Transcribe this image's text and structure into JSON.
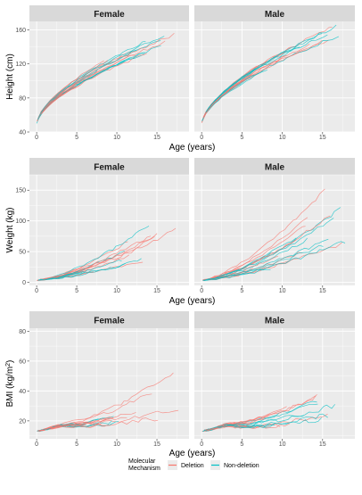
{
  "figure": {
    "legend": {
      "title_line1": "Molecular",
      "title_line2": "Mechanism",
      "entries": [
        {
          "label": "Deletion",
          "color": "#F8766D"
        },
        {
          "label": "Non-deletion",
          "color": "#00BFC4"
        }
      ],
      "position": "bottom-center"
    },
    "colors": {
      "panel_bg": "#EBEBEB",
      "strip_bg": "#D9D9D9",
      "grid": "#ffffff",
      "deletion": "#F8766D",
      "non_deletion": "#00BFC4"
    }
  },
  "chart_data": [
    {
      "type": "line",
      "facet": "Female",
      "xlabel": "Age (years)",
      "ylabel": "Height (cm)",
      "xlim": [
        -0.9,
        19
      ],
      "ylim": [
        40,
        170
      ],
      "xticks": [
        0,
        5,
        10,
        15
      ],
      "yticks": [
        40,
        80,
        120,
        160
      ],
      "grid": true,
      "curve": {
        "model": "sqrt",
        "y0": 50,
        "y18": 158,
        "spread": 12
      },
      "series": [
        {
          "group": "Deletion",
          "count": 12
        },
        {
          "group": "Non-deletion",
          "count": 8
        }
      ]
    },
    {
      "type": "line",
      "facet": "Male",
      "xlabel": "Age (years)",
      "ylabel": "Height (cm)",
      "xlim": [
        -0.9,
        19
      ],
      "ylim": [
        40,
        170
      ],
      "xticks": [
        0,
        5,
        10,
        15
      ],
      "yticks": [
        40,
        80,
        120,
        160
      ],
      "grid": true,
      "curve": {
        "model": "sqrt",
        "y0": 50,
        "y18": 162,
        "spread": 10
      },
      "series": [
        {
          "group": "Deletion",
          "count": 12
        },
        {
          "group": "Non-deletion",
          "count": 8
        }
      ]
    },
    {
      "type": "line",
      "facet": "Female",
      "xlabel": "Age (years)",
      "ylabel": "Weight (kg)",
      "xlim": [
        -0.9,
        19
      ],
      "ylim": [
        -5,
        175
      ],
      "xticks": [
        0,
        5,
        10,
        15
      ],
      "yticks": [
        0,
        50,
        100,
        150
      ],
      "grid": true,
      "curve": {
        "model": "power",
        "y0": 3.5,
        "y18": 80,
        "spread": 28
      },
      "series": [
        {
          "group": "Deletion",
          "count": 12
        },
        {
          "group": "Non-deletion",
          "count": 8
        }
      ]
    },
    {
      "type": "line",
      "facet": "Male",
      "xlabel": "Age (years)",
      "ylabel": "Weight (kg)",
      "xlim": [
        -0.9,
        19
      ],
      "ylim": [
        -5,
        175
      ],
      "xticks": [
        0,
        5,
        10,
        15
      ],
      "yticks": [
        0,
        50,
        100,
        150
      ],
      "grid": true,
      "curve": {
        "model": "power",
        "y0": 3.5,
        "y18": 95,
        "spread": 40
      },
      "series": [
        {
          "group": "Deletion",
          "count": 12
        },
        {
          "group": "Non-deletion",
          "count": 8
        }
      ]
    },
    {
      "type": "line",
      "facet": "Female",
      "xlabel": "Age (years)",
      "ylabel": "BMI (kg/m2)",
      "ylabel_main": "BMI (kg/m",
      "ylabel_sup": "2",
      "ylabel_end": ")",
      "xlim": [
        -0.9,
        19
      ],
      "ylim": [
        8,
        82
      ],
      "xticks": [
        0,
        5,
        10,
        15
      ],
      "yticks": [
        20,
        40,
        60,
        80
      ],
      "grid": true,
      "curve": {
        "model": "bmi",
        "y0": 13,
        "y18": 33,
        "spread": 10
      },
      "series": [
        {
          "group": "Deletion",
          "count": 12
        },
        {
          "group": "Non-deletion",
          "count": 8
        }
      ]
    },
    {
      "type": "line",
      "facet": "Male",
      "xlabel": "Age (years)",
      "ylabel": "BMI (kg/m2)",
      "ylabel_main": "BMI (kg/m",
      "ylabel_sup": "2",
      "ylabel_end": ")",
      "xlim": [
        -0.9,
        19
      ],
      "ylim": [
        8,
        82
      ],
      "xticks": [
        0,
        5,
        10,
        15
      ],
      "yticks": [
        20,
        40,
        60,
        80
      ],
      "grid": true,
      "curve": {
        "model": "bmi",
        "y0": 13,
        "y18": 33,
        "spread": 14
      },
      "series": [
        {
          "group": "Deletion",
          "count": 12
        },
        {
          "group": "Non-deletion",
          "count": 8
        }
      ]
    }
  ]
}
